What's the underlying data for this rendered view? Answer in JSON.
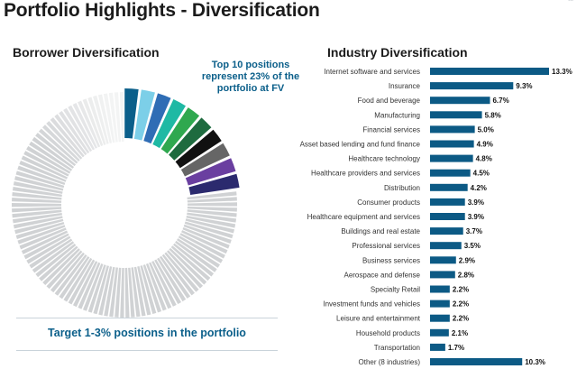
{
  "header": {
    "title": "Portfolio Highlights - Diversification",
    "corner_tag": "..."
  },
  "borrower": {
    "title": "Borrower Diversification",
    "callout": "Top 10 positions represent 23% of the portfolio at FV",
    "target": "Target 1-3% positions in the portfolio"
  },
  "industry": {
    "title": "Industry Diversification"
  },
  "colors": {
    "accent": "#0b5f8a",
    "bar": "#0c5a85",
    "gray_segment": "#d0d2d4",
    "top10": [
      "#0b5f8a",
      "#7ccfe8",
      "#2f6db5",
      "#1fb9a4",
      "#2fa84f",
      "#1e6b3f",
      "#111111",
      "#666666",
      "#6a3fa0",
      "#2b2a6e"
    ]
  },
  "chart_data": [
    {
      "type": "pie",
      "variant": "donut",
      "title": "Borrower Diversification",
      "annotation": "Top 10 positions represent 23% of the portfolio at FV",
      "highlighted_segments": 10,
      "highlighted_share_pct": 23,
      "other_segments_approx": 100
    },
    {
      "type": "bar",
      "orientation": "horizontal",
      "title": "Industry Diversification",
      "unit": "%",
      "xlim": [
        0,
        14
      ],
      "categories": [
        "Internet software and services",
        "Insurance",
        "Food and beverage",
        "Manufacturing",
        "Financial services",
        "Asset based lending and fund finance",
        "Healthcare technology",
        "Healthcare providers and services",
        "Distribution",
        "Consumer products",
        "Healthcare equipment and services",
        "Buildings and real estate",
        "Professional services",
        "Business services",
        "Aerospace and defense",
        "Specialty Retail",
        "Investment funds and vehicles",
        "Leisure and entertainment",
        "Household products",
        "Transportation",
        "Other (8 industries)"
      ],
      "values": [
        13.3,
        9.3,
        6.7,
        5.8,
        5.0,
        4.9,
        4.8,
        4.5,
        4.2,
        3.9,
        3.9,
        3.7,
        3.5,
        2.9,
        2.8,
        2.2,
        2.2,
        2.2,
        2.1,
        1.7,
        10.3
      ],
      "labels": [
        "13.3%",
        "9.3%",
        "6.7%",
        "5.8%",
        "5.0%",
        "4.9%",
        "4.8%",
        "4.5%",
        "4.2%",
        "3.9%",
        "3.9%",
        "3.7%",
        "3.5%",
        "2.9%",
        "2.8%",
        "2.2%",
        "2.2%",
        "2.2%",
        "2.1%",
        "1.7%",
        "10.3%"
      ]
    }
  ]
}
